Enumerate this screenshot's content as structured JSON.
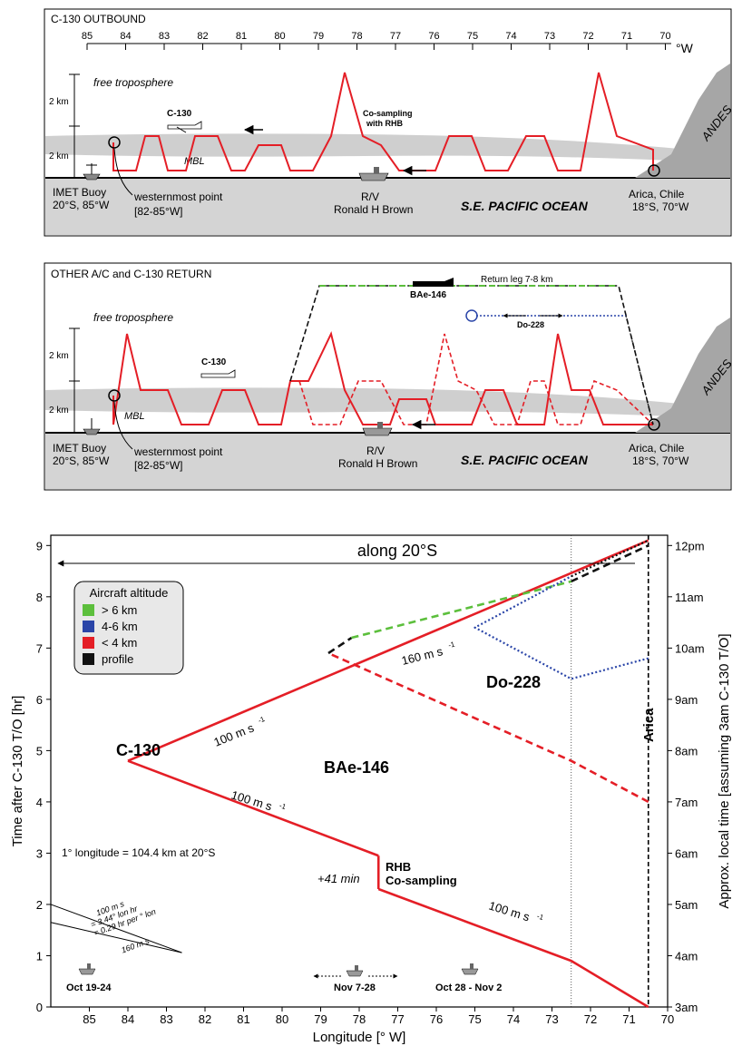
{
  "panel1": {
    "title": "C-130 OUTBOUND",
    "lon_ticks": [
      "85",
      "84",
      "83",
      "82",
      "81",
      "80",
      "79",
      "78",
      "77",
      "76",
      "75",
      "74",
      "73",
      "72",
      "71",
      "70"
    ],
    "deg_w": "°W",
    "free_trop": "free troposphere",
    "km_upper": "2 km",
    "km_lower": "2 km",
    "mbl": "MBL",
    "c130": "C-130",
    "cosampling_1": "Co-sampling",
    "cosampling_2": "with RHB",
    "andes": "ANDES",
    "buoy_1": "IMET Buoy",
    "buoy_2": "20°S, 85°W",
    "west_1": "westernmost point",
    "west_2": "[82-85°W]",
    "rv_1": "R/V",
    "rv_2": "Ronald H Brown",
    "ocean": "S.E. PACIFIC OCEAN",
    "arica_1": "Arica, Chile",
    "arica_2": "18°S, 70°W"
  },
  "panel2": {
    "title": "OTHER A/C and C-130 RETURN",
    "free_trop": "free troposphere",
    "km_upper": "2 km",
    "km_lower": "2 km",
    "mbl": "MBL",
    "c130": "C-130",
    "bae": "BAe-146",
    "return_leg": "Return leg 7-8 km",
    "do228": "Do-228",
    "andes": "ANDES",
    "buoy_1": "IMET Buoy",
    "buoy_2": "20°S, 85°W",
    "west_1": "westernmost point",
    "west_2": "[82-85°W]",
    "rv_1": "R/V",
    "rv_2": "Ronald H Brown",
    "ocean": "S.E. PACIFIC OCEAN",
    "arica_1": "Arica, Chile",
    "arica_2": "18°S, 70°W"
  },
  "chart_data": {
    "type": "line",
    "xlabel": "Longitude [° W]",
    "ylabel": "Time after C-130 T/O [hr]",
    "y2label": "Approx. local time [assuming 3am C-130 T/O]",
    "xlim": [
      86,
      70
    ],
    "ylim": [
      0,
      9.2
    ],
    "x_ticks": [
      85,
      84,
      83,
      82,
      81,
      80,
      79,
      78,
      77,
      76,
      75,
      74,
      73,
      72,
      71,
      70
    ],
    "y_ticks": [
      0,
      1,
      2,
      3,
      4,
      5,
      6,
      7,
      8,
      9
    ],
    "y2_ticks": [
      {
        "y": 0,
        "label": "3am"
      },
      {
        "y": 1,
        "label": "4am"
      },
      {
        "y": 2,
        "label": "5am"
      },
      {
        "y": 3,
        "label": "6am"
      },
      {
        "y": 4,
        "label": "7am"
      },
      {
        "y": 5,
        "label": "8am"
      },
      {
        "y": 6,
        "label": "9am"
      },
      {
        "y": 7,
        "label": "10am"
      },
      {
        "y": 8,
        "label": "11am"
      },
      {
        "y": 9,
        "label": "12pm"
      }
    ],
    "legend": {
      "title": "Aircraft altitude",
      "position": "top-left",
      "items": [
        {
          "label": "> 6 km",
          "color": "#5cbf3c"
        },
        {
          "label": "4-6 km",
          "color": "#2a45a8"
        },
        {
          "label": "< 4 km",
          "color": "#e41e26"
        },
        {
          "label": "profile",
          "color": "#111111"
        }
      ]
    },
    "series": [
      {
        "segments": [
          {
            "color": "#e41e26",
            "dash": false,
            "points": [
              [
                70.5,
                0
              ],
              [
                72.5,
                0.9
              ],
              [
                77.5,
                2.3
              ]
            ]
          },
          {
            "color": "#e41e26",
            "dash": false,
            "points": [
              [
                77.5,
                2.3
              ],
              [
                77.5,
                2.95
              ]
            ]
          },
          {
            "color": "#e41e26",
            "dash": false,
            "points": [
              [
                77.5,
                2.95
              ],
              [
                84,
                4.8
              ]
            ]
          },
          {
            "color": "#e41e26",
            "dash": false,
            "points": [
              [
                84,
                4.8
              ],
              [
                70.5,
                9.1
              ]
            ]
          }
        ]
      },
      {
        "segments": [
          {
            "color": "#e41e26",
            "dash": true,
            "points": [
              [
                70.5,
                4.0
              ],
              [
                72.5,
                4.8
              ],
              [
                78.8,
                6.9
              ]
            ]
          },
          {
            "color": "#111111",
            "dash": true,
            "points": [
              [
                78.8,
                6.9
              ],
              [
                78.2,
                7.2
              ]
            ]
          },
          {
            "color": "#5cbf3c",
            "dash": true,
            "points": [
              [
                78.2,
                7.2
              ],
              [
                72.5,
                8.3
              ]
            ]
          },
          {
            "color": "#111111",
            "dash": true,
            "points": [
              [
                72.5,
                8.3
              ],
              [
                70.5,
                9.0
              ]
            ]
          }
        ]
      },
      {
        "segments": [
          {
            "color": "#2a45a8",
            "dash": "dot",
            "points": [
              [
                70.5,
                6.8
              ],
              [
                72.5,
                6.4
              ],
              [
                75.0,
                7.4
              ],
              [
                72.5,
                8.4
              ]
            ]
          },
          {
            "color": "#111111",
            "dash": "dot",
            "points": [
              [
                72.5,
                8.4
              ],
              [
                70.5,
                9.1
              ]
            ]
          }
        ]
      }
    ],
    "annotations": {
      "along": "along 20°S",
      "c130": "C-130",
      "bae": "BAe-146",
      "do228": "Do-228",
      "arica": "Arica",
      "speed_160": "160 m s",
      "speed_100a": "100 m s",
      "speed_100b": "100 m s",
      "speed_100c": "100 m s",
      "sup": "-1",
      "rhb_1": "RHB",
      "rhb_2": "Co-sampling",
      "plus41": "+41 min",
      "lonkm": "1° longitude = 104.4 km at 20°S",
      "wedge_1": "100 m s",
      "wedge_2": "= 3.44° lon hr",
      "wedge_3": "= 0.29 hr per ° lon",
      "wedge_4": "160 m s",
      "cruise_1": "Oct 19-24",
      "cruise_2": "Nov 7-28",
      "cruise_3": "Oct 28 - Nov 2"
    }
  }
}
